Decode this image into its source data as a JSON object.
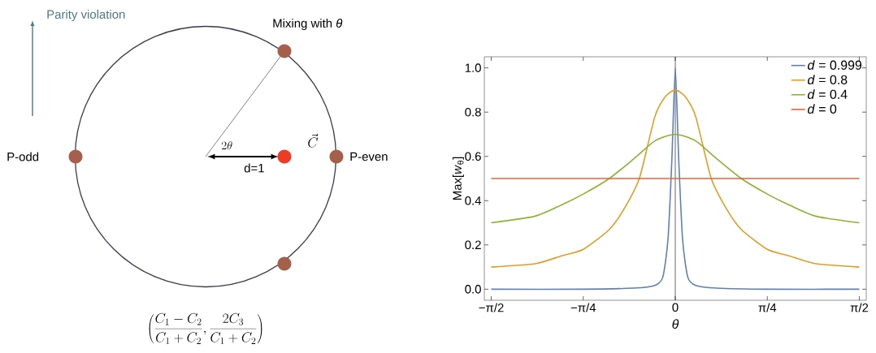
{
  "chart_data": [
    {
      "type": "other",
      "annotations": [
        "Parity violation",
        "Mixing with *θ*",
        "P-odd",
        "P-even",
        "2\\theta",
        "d=1",
        "\\vec{C}",
        "\\left(\\frac{C_1-C_2}{C_1+C_2},\\frac{2C_3}{C_1+C_2}\\right)"
      ]
    },
    {
      "type": "line",
      "xlabel": "*θ*",
      "ylabel": "Max[*w*$_{θ}$]",
      "xlim": [
        -1.63,
        1.63
      ],
      "ylim": [
        -0.05,
        1.05
      ],
      "xticks": [
        {
          "value": -1.5708,
          "label": "−π/2"
        },
        {
          "value": -0.7854,
          "label": "−π/4"
        },
        {
          "value": 0,
          "label": "0"
        },
        {
          "value": 0.7854,
          "label": "π/4"
        },
        {
          "value": 1.5708,
          "label": "π/2"
        }
      ],
      "yticks": [
        {
          "value": 0,
          "label": "0.0"
        },
        {
          "value": 0.2,
          "label": "0.2"
        },
        {
          "value": 0.4,
          "label": "0.4"
        },
        {
          "value": 0.6,
          "label": "0.6"
        },
        {
          "value": 0.8,
          "label": "0.8"
        },
        {
          "value": 1.0,
          "label": "1.0"
        }
      ],
      "legend": "top right",
      "grid": false,
      "ref_lines": [
        {
          "axis": "x",
          "value": 0,
          "color": "#000000"
        }
      ],
      "series": [
        {
          "name": "*d* = 0.999",
          "color": "#5e81b5",
          "x": [
            -1.5708,
            -0.785,
            -0.352,
            -0.174,
            -0.1068,
            -0.0623,
            -0.0289,
            0,
            0.0289,
            0.0623,
            0.1068,
            0.174,
            0.352,
            0.785,
            1.5708
          ],
          "values": [
            0,
            0,
            0.005,
            0.017,
            0.054,
            0.225,
            0.59,
            0.999,
            0.59,
            0.225,
            0.054,
            0.017,
            0.005,
            0,
            0
          ]
        },
        {
          "name": "*d* = 0.8",
          "color": "#e19c24",
          "x": [
            -1.5708,
            -1.197,
            -0.974,
            -0.785,
            -0.563,
            -0.44,
            -0.307,
            -0.174,
            -0.0845,
            0,
            0.0845,
            0.174,
            0.307,
            0.44,
            0.563,
            0.785,
            0.974,
            1.197,
            1.5708
          ],
          "values": [
            0.1,
            0.115,
            0.15,
            0.18,
            0.27,
            0.36,
            0.5,
            0.78,
            0.87,
            0.9,
            0.87,
            0.78,
            0.5,
            0.36,
            0.27,
            0.18,
            0.15,
            0.115,
            0.1
          ]
        },
        {
          "name": "*d* = 0.4",
          "color": "#8fb032",
          "x": [
            -1.5708,
            -1.197,
            -0.974,
            -0.785,
            -0.563,
            -0.352,
            -0.174,
            0,
            0.174,
            0.352,
            0.563,
            0.785,
            0.974,
            1.197,
            1.5708
          ],
          "values": [
            0.3,
            0.33,
            0.38,
            0.43,
            0.5,
            0.59,
            0.67,
            0.7,
            0.67,
            0.59,
            0.5,
            0.43,
            0.38,
            0.33,
            0.3
          ]
        },
        {
          "name": "*d* = 0",
          "color": "#eb6235",
          "x": [
            -1.5708,
            1.5708
          ],
          "values": [
            0.5,
            0.5
          ]
        }
      ]
    }
  ]
}
